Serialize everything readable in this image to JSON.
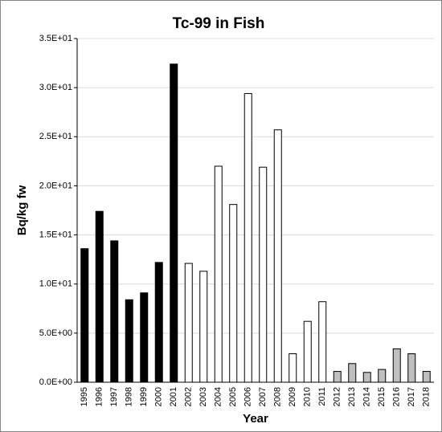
{
  "chart_data": {
    "type": "bar",
    "title": "Tc-99 in Fish",
    "x_label": "Year",
    "y_label": "Bq/kg fw",
    "categories": [
      "1995",
      "1996",
      "1997",
      "1998",
      "1999",
      "2000",
      "2001",
      "2002",
      "2003",
      "2004",
      "2005",
      "2006",
      "2007",
      "2008",
      "2009",
      "2010",
      "2011",
      "2012",
      "2013",
      "2014",
      "2015",
      "2016",
      "2017",
      "2018"
    ],
    "values": [
      13.6,
      17.4,
      14.4,
      8.4,
      9.1,
      12.2,
      32.4,
      12.1,
      11.3,
      22.0,
      18.1,
      29.4,
      21.9,
      25.7,
      2.9,
      6.2,
      8.2,
      1.1,
      1.9,
      1.0,
      1.3,
      3.4,
      2.9,
      1.1
    ],
    "colors": [
      "#000000",
      "#000000",
      "#000000",
      "#000000",
      "#000000",
      "#000000",
      "#000000",
      "#ffffff",
      "#ffffff",
      "#ffffff",
      "#ffffff",
      "#ffffff",
      "#ffffff",
      "#ffffff",
      "#ffffff",
      "#ffffff",
      "#ffffff",
      "#bfbfbf",
      "#bfbfbf",
      "#bfbfbf",
      "#bfbfbf",
      "#bfbfbf",
      "#bfbfbf",
      "#bfbfbf"
    ],
    "ylim": [
      0,
      35
    ],
    "yticks": [
      {
        "value": 0,
        "label": "0.0E+00"
      },
      {
        "value": 5,
        "label": "5.0E+00"
      },
      {
        "value": 10,
        "label": "1.0E+01"
      },
      {
        "value": 15,
        "label": "1.5E+01"
      },
      {
        "value": 20,
        "label": "2.0E+01"
      },
      {
        "value": 25,
        "label": "2.5E+01"
      },
      {
        "value": 30,
        "label": "3.0E+01"
      },
      {
        "value": 35,
        "label": "3.5E+01"
      }
    ],
    "grid": true
  }
}
